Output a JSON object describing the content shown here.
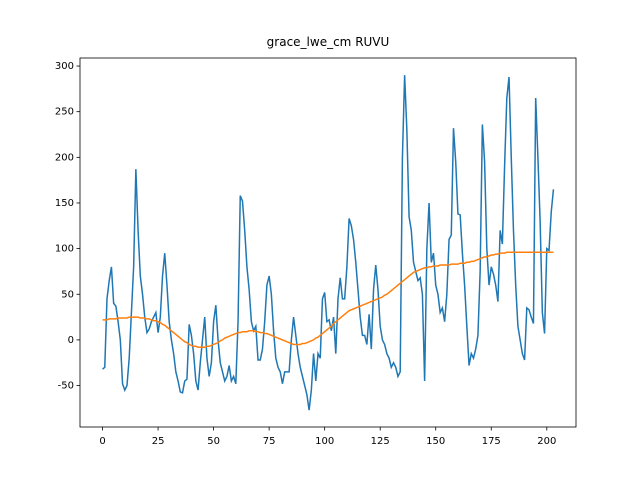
{
  "chart_data": {
    "type": "line",
    "title": "grace_lwe_cm RUVU",
    "x": [
      0,
      1,
      2,
      3,
      4,
      5,
      6,
      7,
      8,
      9,
      10,
      11,
      12,
      13,
      14,
      15,
      16,
      17,
      18,
      19,
      20,
      21,
      22,
      23,
      24,
      25,
      26,
      27,
      28,
      29,
      30,
      31,
      32,
      33,
      34,
      35,
      36,
      37,
      38,
      39,
      40,
      41,
      42,
      43,
      44,
      45,
      46,
      47,
      48,
      49,
      50,
      51,
      52,
      53,
      54,
      55,
      56,
      57,
      58,
      59,
      60,
      61,
      62,
      63,
      64,
      65,
      66,
      67,
      68,
      69,
      70,
      71,
      72,
      73,
      74,
      75,
      76,
      77,
      78,
      79,
      80,
      81,
      82,
      83,
      84,
      85,
      86,
      87,
      88,
      89,
      90,
      91,
      92,
      93,
      94,
      95,
      96,
      97,
      98,
      99,
      100,
      101,
      102,
      103,
      104,
      105,
      106,
      107,
      108,
      109,
      110,
      111,
      112,
      113,
      114,
      115,
      116,
      117,
      118,
      119,
      120,
      121,
      122,
      123,
      124,
      125,
      126,
      127,
      128,
      129,
      130,
      131,
      132,
      133,
      134,
      135,
      136,
      137,
      138,
      139,
      140,
      141,
      142,
      143,
      144,
      145,
      146,
      147,
      148,
      149,
      150,
      151,
      152,
      153,
      154,
      155,
      156,
      157,
      158,
      159,
      160,
      161,
      162,
      163,
      164,
      165,
      166,
      167,
      168,
      169,
      170,
      171,
      172,
      173,
      174,
      175,
      176,
      177,
      178,
      179,
      180,
      181,
      182,
      183,
      184,
      185,
      186,
      187,
      188,
      189,
      190,
      191,
      192,
      193,
      194,
      195,
      196,
      197,
      198,
      199,
      200,
      201,
      202,
      203
    ],
    "series": [
      {
        "color": "#1f77b4",
        "values": [
          -32,
          -30,
          45,
          65,
          80,
          40,
          37,
          20,
          0,
          -48,
          -55,
          -50,
          -20,
          30,
          80,
          187,
          120,
          70,
          50,
          25,
          8,
          12,
          20,
          25,
          30,
          8,
          25,
          70,
          95,
          60,
          20,
          0,
          -15,
          -35,
          -45,
          -57,
          -58,
          -45,
          -43,
          17,
          5,
          -15,
          -45,
          -55,
          -25,
          0,
          25,
          -20,
          -40,
          -25,
          20,
          38,
          0,
          -25,
          -35,
          -45,
          -40,
          -28,
          -45,
          -40,
          -48,
          20,
          158,
          152,
          120,
          80,
          55,
          20,
          10,
          15,
          -22,
          -22,
          -10,
          20,
          60,
          70,
          50,
          10,
          -20,
          -30,
          -35,
          -48,
          -35,
          -35,
          -35,
          0,
          25,
          5,
          -15,
          -30,
          -40,
          -50,
          -60,
          -77,
          -55,
          -15,
          -45,
          -15,
          -20,
          45,
          52,
          20,
          22,
          10,
          25,
          -15,
          45,
          68,
          45,
          45,
          80,
          133,
          125,
          110,
          85,
          55,
          25,
          5,
          5,
          -5,
          28,
          -10,
          55,
          82,
          55,
          15,
          0,
          -5,
          -15,
          -20,
          -30,
          -25,
          -30,
          -40,
          -35,
          200,
          290,
          230,
          135,
          120,
          85,
          75,
          65,
          68,
          50,
          -45,
          100,
          150,
          85,
          95,
          60,
          50,
          30,
          35,
          20,
          50,
          110,
          115,
          232,
          195,
          138,
          137,
          95,
          60,
          15,
          -28,
          -15,
          -20,
          -10,
          5,
          75,
          236,
          195,
          100,
          60,
          80,
          72,
          60,
          42,
          120,
          105,
          190,
          265,
          288,
          200,
          120,
          60,
          15,
          0,
          -15,
          -22,
          35,
          33,
          25,
          18,
          265,
          200,
          130,
          30,
          7,
          100,
          98,
          140,
          165
        ]
      },
      {
        "color": "#ff7f0e",
        "values": [
          22,
          22,
          22,
          23,
          23,
          23,
          23,
          24,
          24,
          24,
          24,
          24,
          25,
          25,
          25,
          25,
          25,
          24,
          24,
          24,
          23,
          23,
          22,
          21,
          21,
          20,
          19,
          17,
          16,
          14,
          12,
          10,
          8,
          6,
          4,
          2,
          0,
          -2,
          -3,
          -5,
          -6,
          -7,
          -7,
          -8,
          -8,
          -8,
          -8,
          -7,
          -7,
          -6,
          -5,
          -4,
          -3,
          -1,
          0,
          2,
          3,
          4,
          5,
          6,
          7,
          8,
          8,
          9,
          9,
          9,
          10,
          10,
          10,
          9,
          9,
          8,
          8,
          7,
          7,
          6,
          5,
          4,
          3,
          2,
          1,
          0,
          -1,
          -2,
          -3,
          -4,
          -5,
          -5,
          -5,
          -5,
          -4,
          -4,
          -3,
          -2,
          -1,
          0,
          2,
          3,
          5,
          7,
          9,
          11,
          13,
          15,
          18,
          20,
          22,
          24,
          26,
          28,
          30,
          32,
          33,
          34,
          35,
          36,
          37,
          38,
          39,
          40,
          41,
          42,
          43,
          44,
          45,
          46,
          47,
          49,
          50,
          52,
          54,
          56,
          58,
          60,
          62,
          64,
          66,
          68,
          70,
          72,
          74,
          75,
          76,
          77,
          78,
          79,
          79,
          80,
          80,
          81,
          81,
          81,
          82,
          82,
          82,
          82,
          82,
          83,
          83,
          83,
          83,
          84,
          84,
          84,
          85,
          85,
          86,
          86,
          87,
          88,
          89,
          90,
          91,
          91,
          92,
          93,
          93,
          94,
          94,
          95,
          95,
          95,
          96,
          96,
          96,
          96,
          96,
          96,
          96,
          96,
          96,
          96,
          96,
          96,
          96,
          96,
          96,
          96,
          96,
          96,
          96,
          96,
          96,
          96
        ]
      }
    ],
    "xlim": [
      -10.15,
      213.15
    ],
    "ylim": [
      -95.4,
      308.8
    ],
    "xticks": [
      0,
      25,
      50,
      75,
      100,
      125,
      150,
      175,
      200
    ],
    "yticks": [
      -50,
      0,
      50,
      100,
      150,
      200,
      250,
      300
    ]
  }
}
